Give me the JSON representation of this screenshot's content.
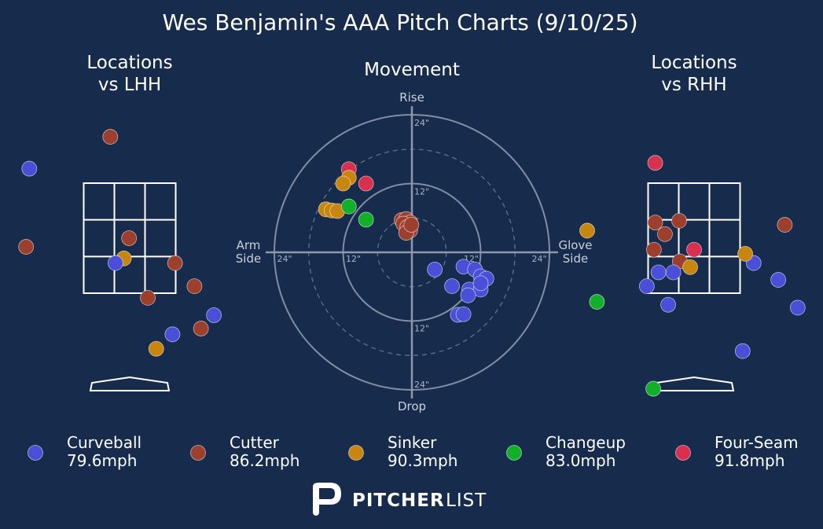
{
  "title": "Wes Benjamin's AAA Pitch Charts (9/10/25)",
  "colors": {
    "background": "#172b4d",
    "Curveball": "#4a4fd8",
    "Cutter": "#9c3f2c",
    "Sinker": "#c8860e",
    "Changeup": "#12b02a",
    "Four-Seam": "#d8304f",
    "zone": "#ffffff",
    "ring": "#8d98ad"
  },
  "chart_data": [
    {
      "type": "scatter",
      "title": "Locations\nvs LHH",
      "points": [
        {
          "pitch": "Cutter",
          "x": -0.3,
          "z": 4.3
        },
        {
          "pitch": "Curveball",
          "x": -1.55,
          "z": 3.75
        },
        {
          "pitch": "Cutter",
          "x": -1.6,
          "z": 2.4
        },
        {
          "pitch": "Cutter",
          "x": -0.01,
          "z": 2.55
        },
        {
          "pitch": "Sinker",
          "x": -0.09,
          "z": 2.2
        },
        {
          "pitch": "Curveball",
          "x": -0.22,
          "z": 2.12
        },
        {
          "pitch": "Cutter",
          "x": 0.7,
          "z": 2.12
        },
        {
          "pitch": "Cutter",
          "x": 1.0,
          "z": 1.72
        },
        {
          "pitch": "Cutter",
          "x": 0.28,
          "z": 1.52
        },
        {
          "pitch": "Curveball",
          "x": 1.3,
          "z": 1.22
        },
        {
          "pitch": "Cutter",
          "x": 1.1,
          "z": 0.99
        },
        {
          "pitch": "Curveball",
          "x": 0.66,
          "z": 0.89
        },
        {
          "pitch": "Sinker",
          "x": 0.41,
          "z": 0.64
        }
      ]
    },
    {
      "type": "scatter",
      "title": "Movement",
      "axis_labels": {
        "top": "Rise",
        "bottom": "Drop",
        "left": "Arm\nSide",
        "right": "Glove\nSide"
      },
      "ring_labels": [
        "12\"",
        "24\"",
        "12\"",
        "24\"",
        "12\"",
        "24\"",
        "12\"",
        "24\""
      ],
      "points": [
        {
          "pitch": "Four-Seam",
          "x": -11,
          "y": 14.5
        },
        {
          "pitch": "Four-Seam",
          "x": -8,
          "y": 12
        },
        {
          "pitch": "Sinker",
          "x": -11,
          "y": 13
        },
        {
          "pitch": "Sinker",
          "x": -12,
          "y": 12
        },
        {
          "pitch": "Sinker",
          "x": -15,
          "y": 7.5
        },
        {
          "pitch": "Sinker",
          "x": -14,
          "y": 7.3
        },
        {
          "pitch": "Sinker",
          "x": -13,
          "y": 7.2
        },
        {
          "pitch": "Changeup",
          "x": -11,
          "y": 8
        },
        {
          "pitch": "Changeup",
          "x": -8,
          "y": 5.7
        },
        {
          "pitch": "Cutter",
          "x": -1.8,
          "y": 5.6
        },
        {
          "pitch": "Cutter",
          "x": -1,
          "y": 5.8
        },
        {
          "pitch": "Cutter",
          "x": -0.3,
          "y": 5.2
        },
        {
          "pitch": "Cutter",
          "x": -1.5,
          "y": 5
        },
        {
          "pitch": "Cutter",
          "x": -0.8,
          "y": 4.4
        },
        {
          "pitch": "Cutter",
          "x": -0.3,
          "y": 3.8
        },
        {
          "pitch": "Cutter",
          "x": -1,
          "y": 3.4
        },
        {
          "pitch": "Cutter",
          "x": -0.1,
          "y": 4.8
        },
        {
          "pitch": "Curveball",
          "x": 4,
          "y": -3
        },
        {
          "pitch": "Curveball",
          "x": 9,
          "y": -2.5
        },
        {
          "pitch": "Curveball",
          "x": 11,
          "y": -3
        },
        {
          "pitch": "Curveball",
          "x": 12,
          "y": -4.2
        },
        {
          "pitch": "Curveball",
          "x": 13,
          "y": -4.6
        },
        {
          "pitch": "Curveball",
          "x": 7,
          "y": -5.9
        },
        {
          "pitch": "Curveball",
          "x": 10,
          "y": -6.5
        },
        {
          "pitch": "Curveball",
          "x": 12,
          "y": -6.5
        },
        {
          "pitch": "Curveball",
          "x": 9.8,
          "y": -7.5
        },
        {
          "pitch": "Curveball",
          "x": 12,
          "y": -5.4
        },
        {
          "pitch": "Curveball",
          "x": 8,
          "y": -10.9
        },
        {
          "pitch": "Curveball",
          "x": 9,
          "y": -10.8
        }
      ]
    },
    {
      "type": "scatter",
      "title": "Locations\nvs RHH",
      "points": [
        {
          "pitch": "Four-Seam",
          "x": -0.6,
          "z": 3.85
        },
        {
          "pitch": "Cutter",
          "x": -0.6,
          "z": 2.82
        },
        {
          "pitch": "Cutter",
          "x": -0.23,
          "z": 2.85
        },
        {
          "pitch": "Cutter",
          "x": -0.45,
          "z": 2.62
        },
        {
          "pitch": "Cutter",
          "x": 1.4,
          "z": 2.78
        },
        {
          "pitch": "Cutter",
          "x": -0.62,
          "z": 2.35
        },
        {
          "pitch": "Four-Seam",
          "x": 0.0,
          "z": 2.35
        },
        {
          "pitch": "Cutter",
          "x": -0.22,
          "z": 2.15
        },
        {
          "pitch": "Curveball",
          "x": 0.92,
          "z": 2.12
        },
        {
          "pitch": "Sinker",
          "x": 0.79,
          "z": 2.28
        },
        {
          "pitch": "Sinker",
          "x": -0.06,
          "z": 2.05
        },
        {
          "pitch": "Curveball",
          "x": -0.55,
          "z": 1.96
        },
        {
          "pitch": "Curveball",
          "x": -0.32,
          "z": 1.96
        },
        {
          "pitch": "Curveball",
          "x": -0.73,
          "z": 1.72
        },
        {
          "pitch": "Curveball",
          "x": 1.3,
          "z": 1.83
        },
        {
          "pitch": "Curveball",
          "x": -0.4,
          "z": 1.4
        },
        {
          "pitch": "Curveball",
          "x": 1.6,
          "z": 1.35
        },
        {
          "pitch": "Changeup",
          "x": -1.5,
          "z": 1.45
        },
        {
          "pitch": "Sinker",
          "x": -1.65,
          "z": 2.68
        },
        {
          "pitch": "Sinker",
          "x": 3.0,
          "z": 2.13
        },
        {
          "pitch": "Curveball",
          "x": 0.75,
          "z": 0.6
        },
        {
          "pitch": "Changeup",
          "x": -0.63,
          "z": -0.05
        }
      ]
    }
  ],
  "legend": [
    {
      "pitch": "Curveball",
      "name": "Curveball",
      "speed": "79.6mph"
    },
    {
      "pitch": "Cutter",
      "name": "Cutter",
      "speed": "86.2mph"
    },
    {
      "pitch": "Sinker",
      "name": "Sinker",
      "speed": "90.3mph"
    },
    {
      "pitch": "Changeup",
      "name": "Changeup",
      "speed": "83.0mph"
    },
    {
      "pitch": "Four-Seam",
      "name": "Four-Seam",
      "speed": "91.8mph"
    }
  ],
  "brand": {
    "bold": "PITCHER",
    "light": "LIST"
  }
}
